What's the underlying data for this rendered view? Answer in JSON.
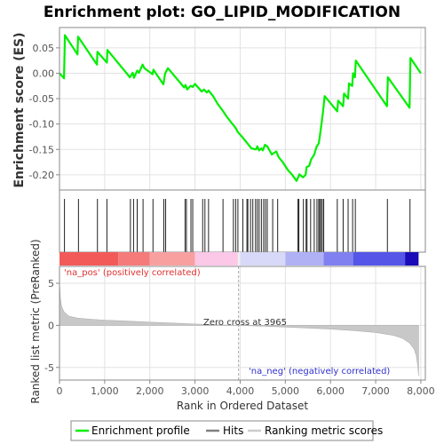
{
  "chart_data": [
    {
      "type": "line",
      "title": "Enrichment plot: GO_LIPID_MODIFICATION",
      "ylabel": "Enrichment score (ES)",
      "xlim": [
        0,
        8100
      ],
      "ylim": [
        -0.23,
        0.09
      ],
      "yticks": [
        0.05,
        0.0,
        -0.05,
        -0.1,
        -0.15,
        -0.2
      ],
      "ytick_labels": [
        "0.05",
        "0.00",
        "-0.05",
        "-0.10",
        "-0.15",
        "-0.20"
      ],
      "grid": true,
      "series": [
        {
          "name": "Enrichment profile",
          "color": "#00ee00",
          "x": [
            0,
            100,
            120,
            400,
            410,
            830,
            840,
            1050,
            1060,
            1560,
            1620,
            1650,
            1720,
            1760,
            1840,
            1880,
            2060,
            2080,
            2300,
            2340,
            2400,
            2760,
            2790,
            2830,
            2900,
            2950,
            3000,
            3150,
            3200,
            3260,
            3300,
            3400,
            3500,
            3600,
            3700,
            3800,
            3850,
            3900,
            3950,
            4050,
            4150,
            4250,
            4350,
            4380,
            4420,
            4470,
            4500,
            4550,
            4600,
            4700,
            4800,
            4850,
            4950,
            5050,
            5150,
            5250,
            5290,
            5310,
            5390,
            5450,
            5470,
            5530,
            5570,
            5640,
            5690,
            5740,
            5770,
            5800,
            5830,
            5870,
            6150,
            6170,
            6280,
            6300,
            6390,
            6410,
            6480,
            6500,
            6540,
            6560,
            7250,
            7270,
            7750,
            7770,
            8000
          ],
          "y": [
            0.0,
            -0.01,
            0.075,
            0.037,
            0.072,
            0.017,
            0.042,
            0.021,
            0.046,
            -0.008,
            0.001,
            -0.009,
            0.005,
            0.001,
            0.017,
            0.01,
            -0.002,
            0.007,
            -0.022,
            0.0,
            0.01,
            -0.028,
            -0.023,
            -0.032,
            -0.025,
            -0.027,
            -0.021,
            -0.036,
            -0.032,
            -0.038,
            -0.034,
            -0.045,
            -0.06,
            -0.072,
            -0.085,
            -0.097,
            -0.102,
            -0.108,
            -0.116,
            -0.126,
            -0.137,
            -0.148,
            -0.15,
            -0.144,
            -0.152,
            -0.148,
            -0.152,
            -0.141,
            -0.144,
            -0.16,
            -0.154,
            -0.165,
            -0.176,
            -0.19,
            -0.2,
            -0.212,
            -0.204,
            -0.199,
            -0.205,
            -0.2,
            -0.185,
            -0.182,
            -0.17,
            -0.16,
            -0.145,
            -0.138,
            -0.12,
            -0.1,
            -0.08,
            -0.045,
            -0.075,
            -0.054,
            -0.065,
            -0.04,
            -0.05,
            -0.02,
            -0.025,
            0.0,
            -0.008,
            0.025,
            -0.065,
            -0.008,
            -0.068,
            0.03,
            0.0
          ]
        }
      ]
    },
    {
      "type": "bar",
      "title": "",
      "name": "Hits",
      "hit_positions": [
        110,
        420,
        840,
        1050,
        1570,
        1640,
        1720,
        1850,
        2070,
        2310,
        2350,
        2780,
        2810,
        2910,
        2950,
        3170,
        3220,
        3300,
        3620,
        3850,
        3900,
        3950,
        4060,
        4150,
        4170,
        4230,
        4280,
        4340,
        4380,
        4420,
        4470,
        4520,
        4560,
        4600,
        4720,
        4830,
        5280,
        5300,
        5400,
        5460,
        5480,
        5560,
        5640,
        5700,
        5740,
        5760,
        5790,
        5820,
        5850,
        6150,
        6280,
        6390,
        6490,
        6550,
        7260,
        7760
      ]
    },
    {
      "type": "heatmap",
      "title": "",
      "name": "ranking bar",
      "segments": [
        {
          "from": 0,
          "to": 1300,
          "color": "#f25a5a"
        },
        {
          "from": 1300,
          "to": 2000,
          "color": "#f57a7a"
        },
        {
          "from": 2000,
          "to": 3000,
          "color": "#f8a0a0"
        },
        {
          "from": 3000,
          "to": 3950,
          "color": "#fbc8e8"
        },
        {
          "from": 3950,
          "to": 4000,
          "color": "#f0f0f0"
        },
        {
          "from": 4000,
          "to": 5000,
          "color": "#d8d8f8"
        },
        {
          "from": 5000,
          "to": 5850,
          "color": "#b0b0f5"
        },
        {
          "from": 5850,
          "to": 6500,
          "color": "#8080f0"
        },
        {
          "from": 6500,
          "to": 7650,
          "color": "#5555e8"
        },
        {
          "from": 7650,
          "to": 7950,
          "color": "#1a0ab8"
        }
      ]
    },
    {
      "type": "area",
      "title": "",
      "name": "Ranking metric scores",
      "ylabel": "Ranked list metric (PreRanked)",
      "xlabel": "Rank in Ordered Dataset",
      "xlim": [
        0,
        8100
      ],
      "ylim": [
        -6.5,
        7.0
      ],
      "yticks": [
        5,
        0,
        -5
      ],
      "ytick_labels": [
        "5",
        "0",
        "-5"
      ],
      "xticks": [
        0,
        1000,
        2000,
        3000,
        4000,
        5000,
        6000,
        7000,
        8000
      ],
      "xtick_labels": [
        "0",
        "1,000",
        "2,000",
        "3,000",
        "4,000",
        "5,000",
        "6,000",
        "7,000",
        "8,000"
      ],
      "x": [
        0,
        20,
        50,
        100,
        200,
        400,
        700,
        1000,
        1500,
        2000,
        2500,
        3000,
        3500,
        3965,
        4500,
        5000,
        5500,
        6000,
        6500,
        7000,
        7400,
        7600,
        7750,
        7850,
        7900,
        7930,
        7950
      ],
      "y": [
        5.2,
        3.2,
        2.2,
        1.6,
        1.1,
        0.85,
        0.72,
        0.62,
        0.5,
        0.38,
        0.27,
        0.16,
        0.06,
        0.0,
        -0.1,
        -0.2,
        -0.32,
        -0.45,
        -0.62,
        -0.85,
        -1.2,
        -1.55,
        -2.1,
        -2.8,
        -3.6,
        -4.8,
        -6.0
      ],
      "annotations": {
        "pos_label": "'na_pos' (positively correlated)",
        "neg_label": "'na_neg' (negatively correlated)",
        "zero_cross": "Zero cross at 3965"
      }
    }
  ],
  "legend": {
    "items": [
      {
        "label": "Enrichment profile",
        "color": "#00ee00"
      },
      {
        "label": "Hits",
        "color": "#808080"
      },
      {
        "label": "Ranking metric scores",
        "color": "#cccccc"
      }
    ]
  }
}
